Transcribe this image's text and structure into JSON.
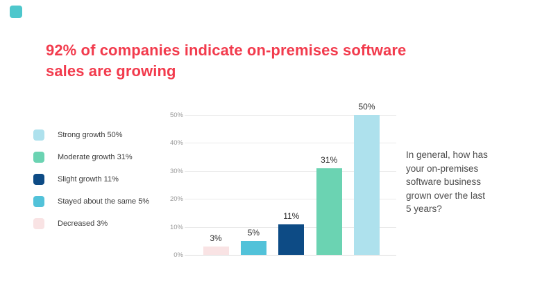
{
  "accent_square": {
    "color": "#4EC7CC"
  },
  "title": {
    "text": "92% of companies indicate on-premises software\nsales are growing",
    "color": "#F23B4D"
  },
  "legend": {
    "items": [
      {
        "label": "Strong growth 50%",
        "color": "#AEE1ED"
      },
      {
        "label": "Moderate growth 31%",
        "color": "#6BD3B2"
      },
      {
        "label": "Slight growth 11%",
        "color": "#0D4B85"
      },
      {
        "label": "Stayed about the same 5%",
        "color": "#52C2D9"
      },
      {
        "label": "Decreased 3%",
        "color": "#F9E3E4"
      }
    ]
  },
  "chart_data": {
    "type": "bar",
    "categories": [
      "Decreased",
      "Stayed about the same",
      "Slight growth",
      "Moderate growth",
      "Strong growth"
    ],
    "values": [
      3,
      5,
      11,
      31,
      50
    ],
    "bar_labels": [
      "3%",
      "5%",
      "11%",
      "31%",
      "50%"
    ],
    "bar_colors": [
      "#F9E3E4",
      "#52C2D9",
      "#0D4B85",
      "#6BD3B2",
      "#AEE1ED"
    ],
    "y_ticks": [
      0,
      10,
      20,
      30,
      40,
      50
    ],
    "y_tick_labels": [
      "0%",
      "10%",
      "20%",
      "30%",
      "40%",
      "50%"
    ],
    "ylim": [
      0,
      50
    ],
    "grid": "horizontal",
    "legend_position": "left",
    "title": "",
    "xlabel": "",
    "ylabel": ""
  },
  "question": {
    "text": "In general, how has\nyour on-premises\nsoftware business\ngrown over the last\n5 years?"
  }
}
